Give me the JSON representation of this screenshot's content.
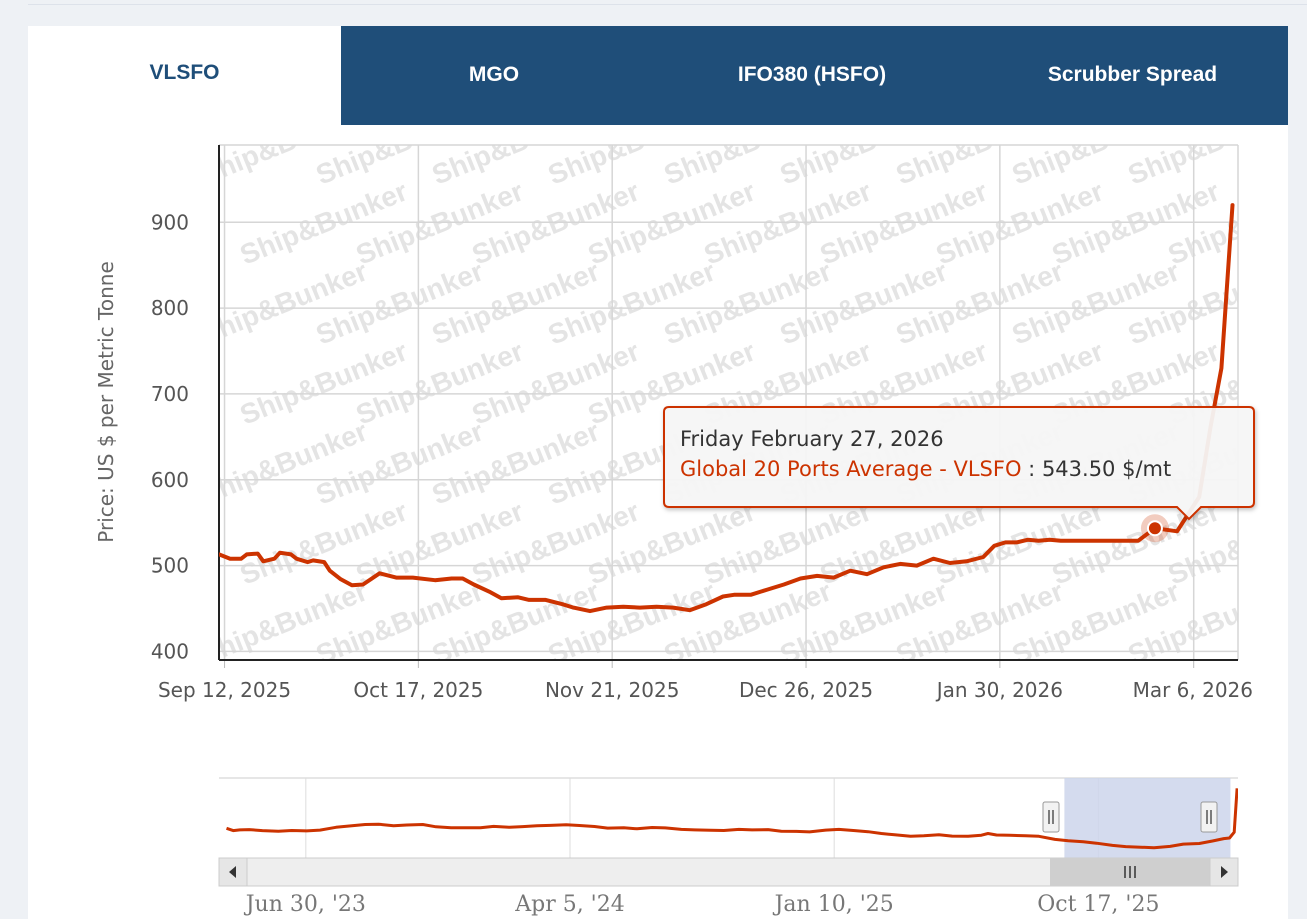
{
  "tabs": [
    {
      "label": "VLSFO",
      "active": true
    },
    {
      "label": "MGO",
      "active": false
    },
    {
      "label": "IFO380 (HSFO)",
      "active": false
    },
    {
      "label": "Scrubber Spread",
      "active": false
    }
  ],
  "watermark": "Ship&Bunker",
  "colors": {
    "series": "#cc3300",
    "tab_active_text": "#1f4e79",
    "tab_bg": "#1f4e79",
    "navigator_selection": "#ccd5eb"
  },
  "chart_data": {
    "type": "line",
    "ylabel": "Price: US $ per Metric Tonne",
    "ylim": [
      390,
      990
    ],
    "yticks": [
      400,
      500,
      600,
      700,
      800,
      900
    ],
    "xlim": [
      "2025-09-11",
      "2026-03-14"
    ],
    "xticks": [
      "2025-09-12",
      "2025-10-17",
      "2025-11-21",
      "2025-12-26",
      "2026-01-30",
      "2026-03-06"
    ],
    "xtick_labels": [
      "Sep 12, 2025",
      "Oct 17, 2025",
      "Nov 21, 2025",
      "Dec 26, 2025",
      "Jan 30, 2026",
      "Mar 6, 2026"
    ],
    "grid": true,
    "series": [
      {
        "name": "Global 20 Ports Average - VLSFO",
        "x": [
          "2025-09-11",
          "2025-09-13",
          "2025-09-15",
          "2025-09-16",
          "2025-09-18",
          "2025-09-19",
          "2025-09-21",
          "2025-09-22",
          "2025-09-24",
          "2025-09-25",
          "2025-09-27",
          "2025-09-28",
          "2025-09-30",
          "2025-10-01",
          "2025-10-03",
          "2025-10-05",
          "2025-10-07",
          "2025-10-10",
          "2025-10-13",
          "2025-10-16",
          "2025-10-20",
          "2025-10-23",
          "2025-10-25",
          "2025-10-27",
          "2025-10-30",
          "2025-11-01",
          "2025-11-04",
          "2025-11-06",
          "2025-11-09",
          "2025-11-12",
          "2025-11-14",
          "2025-11-17",
          "2025-11-20",
          "2025-11-23",
          "2025-11-26",
          "2025-11-29",
          "2025-12-02",
          "2025-12-05",
          "2025-12-08",
          "2025-12-11",
          "2025-12-13",
          "2025-12-16",
          "2025-12-19",
          "2025-12-22",
          "2025-12-25",
          "2025-12-28",
          "2025-12-31",
          "2026-01-03",
          "2026-01-06",
          "2026-01-09",
          "2026-01-12",
          "2026-01-15",
          "2026-01-18",
          "2026-01-21",
          "2026-01-24",
          "2026-01-27",
          "2026-01-29",
          "2026-01-31",
          "2026-02-02",
          "2026-02-04",
          "2026-02-06",
          "2026-02-08",
          "2026-02-10",
          "2026-02-12",
          "2026-02-14",
          "2026-02-16",
          "2026-02-18",
          "2026-02-20",
          "2026-02-22",
          "2026-02-24",
          "2026-02-27",
          "2026-03-03",
          "2026-03-07",
          "2026-03-09",
          "2026-03-11",
          "2026-03-13"
        ],
        "y": [
          513,
          508,
          508,
          513,
          514,
          505,
          508,
          515,
          513,
          508,
          504,
          506,
          504,
          494,
          484,
          477,
          478,
          491,
          486,
          486,
          483,
          485,
          485,
          478,
          469,
          462,
          463,
          460,
          460,
          455,
          451,
          447,
          451,
          452,
          451,
          452,
          451,
          448,
          455,
          464,
          466,
          466,
          472,
          478,
          485,
          488,
          486,
          494,
          490,
          498,
          502,
          500,
          508,
          503,
          505,
          510,
          523,
          527,
          527,
          530,
          529,
          530,
          529,
          529,
          529,
          529,
          529,
          529,
          529,
          529,
          543.5,
          540,
          580,
          660,
          730,
          920
        ]
      }
    ],
    "tooltip": {
      "date": "Friday February 27, 2026",
      "series": "Global 20 Ports Average - VLSFO",
      "value": "543.50 $/mt",
      "x": "2026-02-27",
      "y": 543.5
    },
    "navigator": {
      "xticks": [
        "2023-06-30",
        "2024-04-05",
        "2025-01-10",
        "2025-10-17"
      ],
      "xtick_labels": [
        "Jun 30, '23",
        "Apr 5, '24",
        "Jan 10, '25",
        "Oct 17, '25"
      ],
      "xlim": [
        "2023-03-30",
        "2026-03-14"
      ],
      "ylim": [
        380,
        1000
      ],
      "selection": [
        "2025-09-11",
        "2026-03-06"
      ],
      "x": [
        "2023-04-07",
        "2023-04-14",
        "2023-04-21",
        "2023-05-01",
        "2023-05-15",
        "2023-06-01",
        "2023-06-15",
        "2023-07-01",
        "2023-07-15",
        "2023-08-01",
        "2023-08-15",
        "2023-09-01",
        "2023-09-15",
        "2023-10-01",
        "2023-10-15",
        "2023-11-01",
        "2023-11-15",
        "2023-12-01",
        "2023-12-15",
        "2024-01-01",
        "2024-01-15",
        "2024-02-01",
        "2024-02-15",
        "2024-03-01",
        "2024-03-15",
        "2024-04-01",
        "2024-04-15",
        "2024-05-01",
        "2024-05-15",
        "2024-06-01",
        "2024-06-15",
        "2024-07-01",
        "2024-07-15",
        "2024-08-01",
        "2024-08-15",
        "2024-09-01",
        "2024-09-15",
        "2024-10-01",
        "2024-10-15",
        "2024-11-01",
        "2024-11-15",
        "2024-12-01",
        "2024-12-15",
        "2025-01-01",
        "2025-01-15",
        "2025-02-01",
        "2025-02-15",
        "2025-03-01",
        "2025-03-15",
        "2025-04-01",
        "2025-04-15",
        "2025-05-01",
        "2025-05-15",
        "2025-06-01",
        "2025-06-15",
        "2025-06-22",
        "2025-07-01",
        "2025-07-15",
        "2025-08-01",
        "2025-08-15",
        "2025-09-01",
        "2025-09-15",
        "2025-10-01",
        "2025-10-15",
        "2025-11-01",
        "2025-11-15",
        "2025-12-01",
        "2025-12-15",
        "2026-01-01",
        "2026-01-15",
        "2026-02-01",
        "2026-02-15",
        "2026-02-27",
        "2026-03-05",
        "2026-03-10",
        "2026-03-13"
      ],
      "y": [
        610,
        592,
        598,
        600,
        592,
        588,
        593,
        590,
        596,
        618,
        628,
        640,
        642,
        630,
        636,
        640,
        622,
        615,
        614,
        615,
        625,
        618,
        623,
        630,
        633,
        638,
        632,
        624,
        612,
        614,
        606,
        616,
        613,
        602,
        598,
        595,
        593,
        602,
        598,
        600,
        588,
        586,
        582,
        596,
        602,
        592,
        584,
        570,
        560,
        548,
        552,
        560,
        550,
        548,
        557,
        570,
        558,
        556,
        552,
        548,
        524,
        514,
        506,
        495,
        478,
        468,
        464,
        460,
        470,
        488,
        492,
        512,
        530,
        535,
        580,
        920
      ]
    }
  }
}
